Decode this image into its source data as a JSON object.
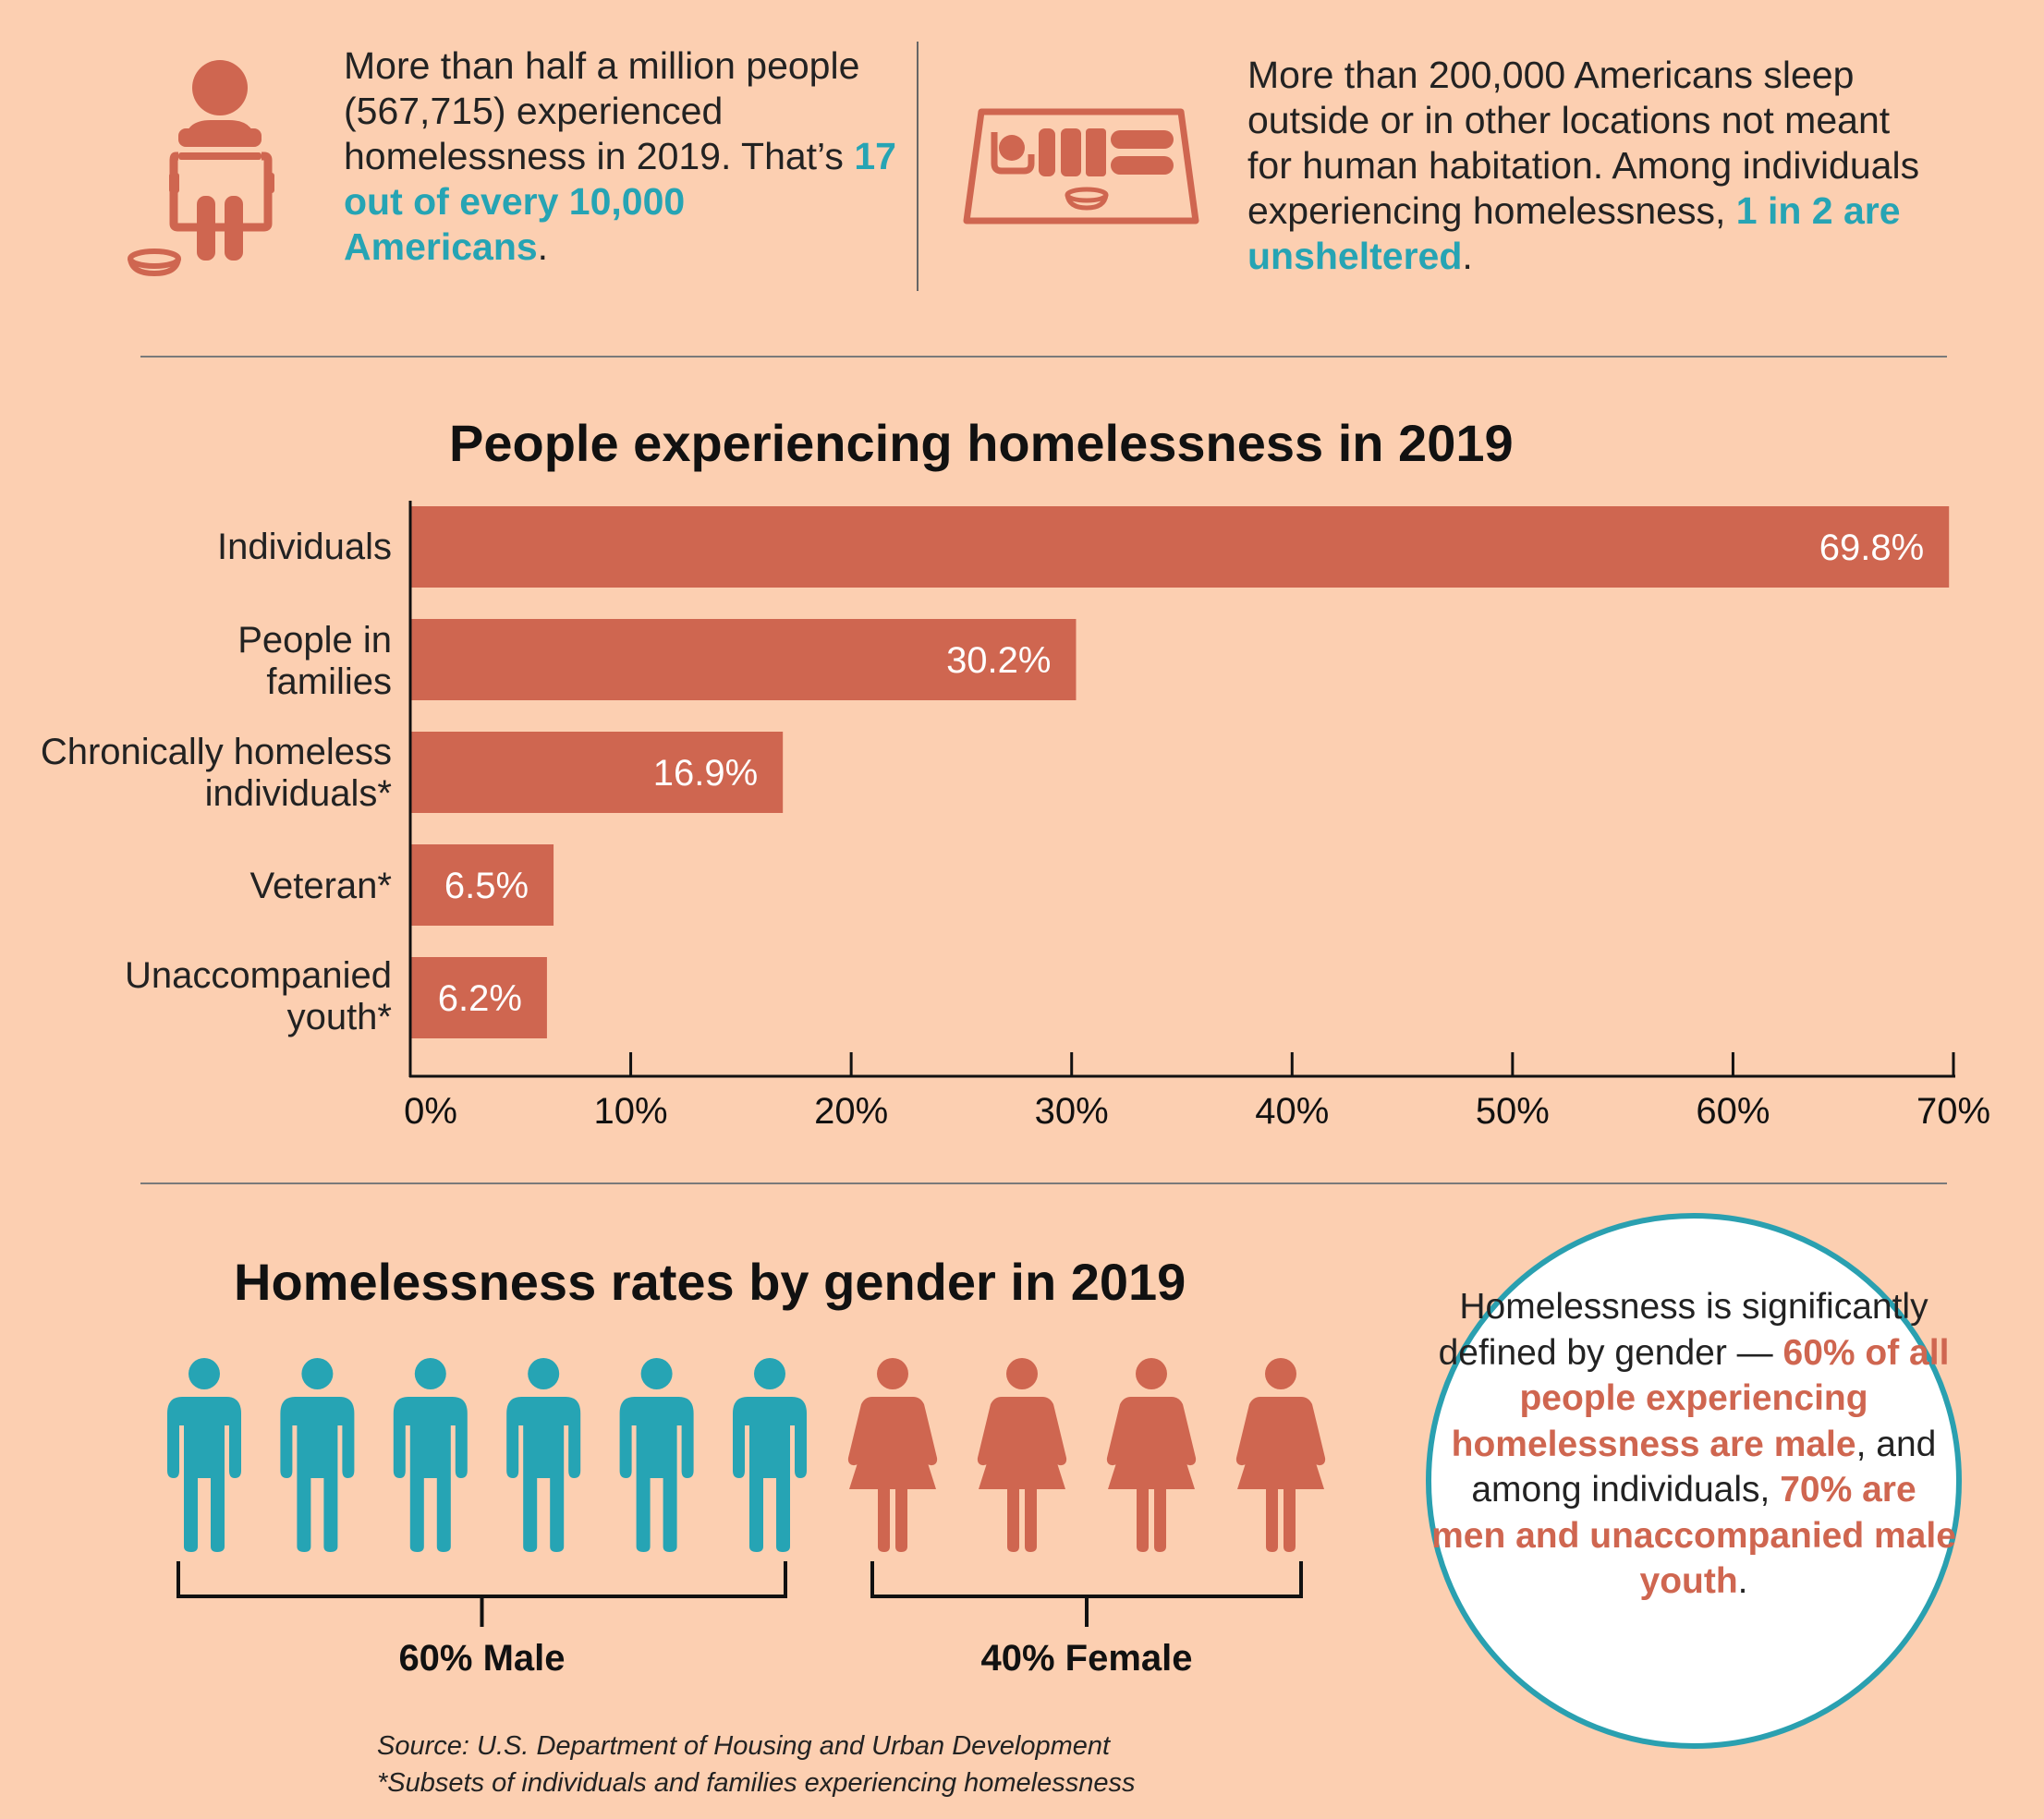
{
  "stats": {
    "left": {
      "text1": "More than half a million people (567,715) experienced homelessness in 2019. That’s ",
      "highlight": "17 out of every 10,000 Americans",
      "text2": "."
    },
    "right": {
      "text1": "More than 200,000 Americans sleep outside or in other locations not meant for human habitation. Among individuals experiencing homelessness, ",
      "highlight": "1 in 2 are unsheltered",
      "text2": "."
    }
  },
  "colors": {
    "background": "#fccfb1",
    "bar": "#cf6650",
    "teal": "#26a4b4",
    "accent": "#cf6650"
  },
  "icons": {
    "left": "person-holding-sign-icon",
    "right": "person-sleeping-on-mat-icon"
  },
  "chart_data": [
    {
      "type": "bar",
      "orientation": "horizontal",
      "title": "People experiencing homelessness in 2019",
      "categories": [
        "Individuals",
        "People in families",
        "Chronically homeless individuals*",
        "Veteran*",
        "Unaccompanied youth*"
      ],
      "category_lines": [
        [
          "Individuals"
        ],
        [
          "People in",
          "families"
        ],
        [
          "Chronically homeless",
          "individuals*"
        ],
        [
          "Veteran*"
        ],
        [
          "Unaccompanied",
          "youth*"
        ]
      ],
      "values": [
        69.8,
        30.2,
        16.9,
        6.5,
        6.2
      ],
      "value_labels": [
        "69.8%",
        "30.2%",
        "16.9%",
        "6.5%",
        "6.2%"
      ],
      "xlim": [
        0,
        70
      ],
      "ticks": [
        0,
        10,
        20,
        30,
        40,
        50,
        60,
        70
      ],
      "tick_labels": [
        "0%",
        "10%",
        "20%",
        "30%",
        "40%",
        "50%",
        "60%",
        "70%"
      ],
      "grid": false,
      "xlabel": "",
      "ylabel": ""
    },
    {
      "type": "pictograph",
      "title": "Homelessness rates by gender in 2019",
      "categories": [
        "Male",
        "Female"
      ],
      "values": [
        60,
        40
      ],
      "counts": [
        6,
        4
      ],
      "labels": [
        "60% Male",
        "40% Female"
      ],
      "colors": [
        "#26a4b4",
        "#cf6650"
      ]
    }
  ],
  "callout": {
    "text1": "Homelessness is significantly defined by gender — ",
    "hl1": "60% of all people experiencing homelessness are male",
    "text2": ", and among individuals, ",
    "hl2": "70% are men and unaccompanied male youth",
    "text3": "."
  },
  "footer": {
    "source": "Source: U.S. Department of Housing and Urban Development",
    "note": "*Subsets of individuals and families experiencing homelessness"
  }
}
